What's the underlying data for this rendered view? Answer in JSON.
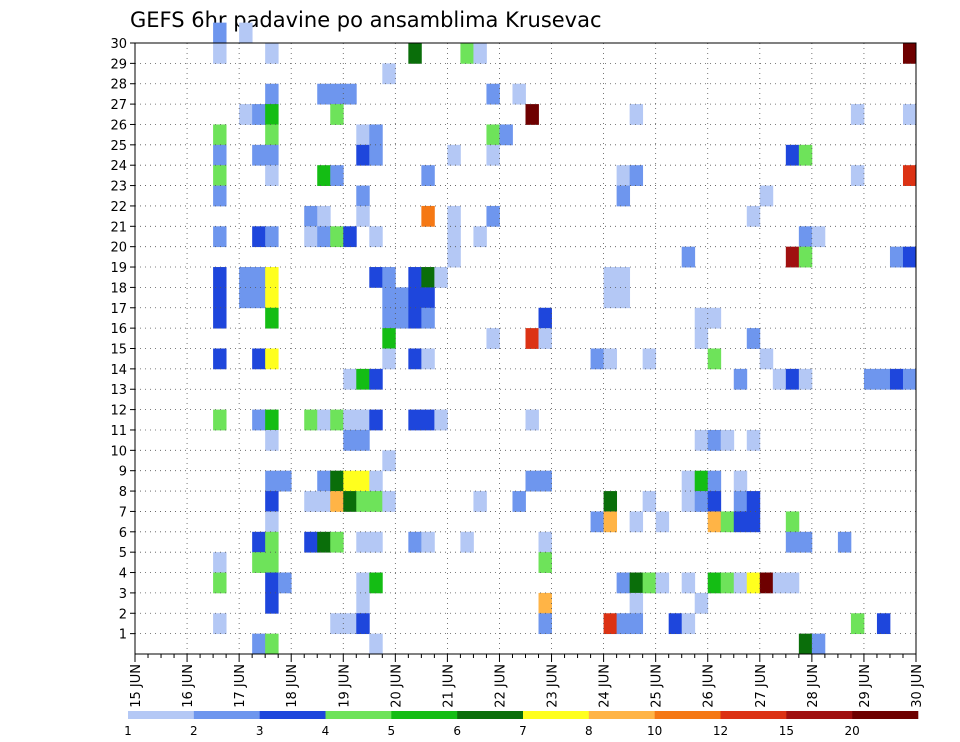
{
  "chart_data": {
    "type": "heatmap",
    "title": "GEFS 6hr padavine po ansamblima Krusevac",
    "xlabel": "",
    "ylabel": "",
    "x_ticks": [
      "15 JUN",
      "16 JUN",
      "17 JUN",
      "18 JUN",
      "19 JUN",
      "20 JUN",
      "21 JUN",
      "22 JUN",
      "23 JUN",
      "24 JUN",
      "25 JUN",
      "26 JUN",
      "27 JUN",
      "28 JUN",
      "29 JUN",
      "30 JUN"
    ],
    "y_ticks": [
      "1",
      "2",
      "3",
      "4",
      "5",
      "6",
      "7",
      "8",
      "9",
      "10",
      "11",
      "12",
      "13",
      "14",
      "15",
      "16",
      "17",
      "18",
      "19",
      "20",
      "21",
      "22",
      "23",
      "24",
      "25",
      "26",
      "27",
      "28",
      "29",
      "30"
    ],
    "xlim": [
      0,
      60
    ],
    "ylim": [
      0,
      30
    ],
    "grid": true,
    "legend": {
      "position": "bottom",
      "labels": [
        "1",
        "2",
        "3",
        "4",
        "5",
        "6",
        "7",
        "8",
        "10",
        "12",
        "15",
        "20"
      ],
      "colors": [
        "#b4c8f5",
        "#6e96ee",
        "#1e46dc",
        "#6ee35a",
        "#14bd14",
        "#0a6e0a",
        "#ffff1e",
        "#ffb446",
        "#f57814",
        "#dc3214",
        "#a01010",
        "#6e0000"
      ]
    },
    "series": [
      {
        "run": 30,
        "cells": [
          {
            "t": 6,
            "c": 2
          },
          {
            "t": 8,
            "c": 1
          }
        ]
      },
      {
        "run": 29,
        "cells": [
          {
            "t": 6,
            "c": 1
          },
          {
            "t": 10,
            "c": 1
          },
          {
            "t": 21,
            "c": 6
          },
          {
            "t": 25,
            "c": 4
          },
          {
            "t": 26,
            "c": 1
          },
          {
            "t": 59,
            "c": 12
          }
        ]
      },
      {
        "run": 28,
        "cells": [
          {
            "t": 19,
            "c": 1
          }
        ]
      },
      {
        "run": 27,
        "cells": [
          {
            "t": 10,
            "c": 2
          },
          {
            "t": 14,
            "c": 2
          },
          {
            "t": 15,
            "c": 2
          },
          {
            "t": 16,
            "c": 2
          },
          {
            "t": 27,
            "c": 2
          },
          {
            "t": 29,
            "c": 1
          }
        ]
      },
      {
        "run": 26,
        "cells": [
          {
            "t": 8,
            "c": 1
          },
          {
            "t": 9,
            "c": 2
          },
          {
            "t": 10,
            "c": 5
          },
          {
            "t": 15,
            "c": 4
          },
          {
            "t": 30,
            "c": 12
          },
          {
            "t": 38,
            "c": 1
          },
          {
            "t": 55,
            "c": 1
          },
          {
            "t": 59,
            "c": 1
          }
        ]
      },
      {
        "run": 25,
        "cells": [
          {
            "t": 6,
            "c": 4
          },
          {
            "t": 10,
            "c": 4
          },
          {
            "t": 17,
            "c": 1
          },
          {
            "t": 18,
            "c": 2
          },
          {
            "t": 27,
            "c": 4
          },
          {
            "t": 28,
            "c": 2
          }
        ]
      },
      {
        "run": 24,
        "cells": [
          {
            "t": 6,
            "c": 2
          },
          {
            "t": 9,
            "c": 2
          },
          {
            "t": 10,
            "c": 2
          },
          {
            "t": 17,
            "c": 3
          },
          {
            "t": 18,
            "c": 2
          },
          {
            "t": 24,
            "c": 1
          },
          {
            "t": 27,
            "c": 1
          },
          {
            "t": 50,
            "c": 3
          },
          {
            "t": 51,
            "c": 4
          }
        ]
      },
      {
        "run": 23,
        "cells": [
          {
            "t": 6,
            "c": 4
          },
          {
            "t": 10,
            "c": 1
          },
          {
            "t": 14,
            "c": 5
          },
          {
            "t": 15,
            "c": 2
          },
          {
            "t": 22,
            "c": 2
          },
          {
            "t": 37,
            "c": 1
          },
          {
            "t": 38,
            "c": 2
          },
          {
            "t": 55,
            "c": 1
          },
          {
            "t": 59,
            "c": 10
          }
        ]
      },
      {
        "run": 22,
        "cells": [
          {
            "t": 6,
            "c": 2
          },
          {
            "t": 17,
            "c": 2
          },
          {
            "t": 37,
            "c": 2
          },
          {
            "t": 48,
            "c": 1
          }
        ]
      },
      {
        "run": 21,
        "cells": [
          {
            "t": 13,
            "c": 2
          },
          {
            "t": 14,
            "c": 1
          },
          {
            "t": 17,
            "c": 1
          },
          {
            "t": 22,
            "c": 9
          },
          {
            "t": 24,
            "c": 1
          },
          {
            "t": 27,
            "c": 2
          },
          {
            "t": 47,
            "c": 1
          }
        ]
      },
      {
        "run": 20,
        "cells": [
          {
            "t": 6,
            "c": 2
          },
          {
            "t": 9,
            "c": 3
          },
          {
            "t": 10,
            "c": 2
          },
          {
            "t": 13,
            "c": 1
          },
          {
            "t": 14,
            "c": 2
          },
          {
            "t": 15,
            "c": 4
          },
          {
            "t": 16,
            "c": 3
          },
          {
            "t": 18,
            "c": 1
          },
          {
            "t": 24,
            "c": 1
          },
          {
            "t": 26,
            "c": 1
          },
          {
            "t": 51,
            "c": 2
          },
          {
            "t": 52,
            "c": 1
          }
        ]
      },
      {
        "run": 19,
        "cells": [
          {
            "t": 24,
            "c": 1
          },
          {
            "t": 42,
            "c": 2
          },
          {
            "t": 50,
            "c": 11
          },
          {
            "t": 51,
            "c": 4
          },
          {
            "t": 58,
            "c": 2
          },
          {
            "t": 59,
            "c": 3
          }
        ]
      },
      {
        "run": 18,
        "cells": [
          {
            "t": 6,
            "c": 3
          },
          {
            "t": 8,
            "c": 2
          },
          {
            "t": 9,
            "c": 2
          },
          {
            "t": 10,
            "c": 7
          },
          {
            "t": 18,
            "c": 3
          },
          {
            "t": 19,
            "c": 2
          },
          {
            "t": 21,
            "c": 3
          },
          {
            "t": 22,
            "c": 6
          },
          {
            "t": 23,
            "c": 1
          },
          {
            "t": 36,
            "c": 1
          },
          {
            "t": 37,
            "c": 1
          }
        ]
      },
      {
        "run": 17,
        "cells": [
          {
            "t": 6,
            "c": 3
          },
          {
            "t": 8,
            "c": 2
          },
          {
            "t": 9,
            "c": 2
          },
          {
            "t": 10,
            "c": 7
          },
          {
            "t": 19,
            "c": 2
          },
          {
            "t": 20,
            "c": 2
          },
          {
            "t": 21,
            "c": 3
          },
          {
            "t": 22,
            "c": 3
          },
          {
            "t": 36,
            "c": 1
          },
          {
            "t": 37,
            "c": 1
          }
        ]
      },
      {
        "run": 16,
        "cells": [
          {
            "t": 6,
            "c": 3
          },
          {
            "t": 10,
            "c": 5
          },
          {
            "t": 19,
            "c": 2
          },
          {
            "t": 20,
            "c": 2
          },
          {
            "t": 21,
            "c": 3
          },
          {
            "t": 22,
            "c": 2
          },
          {
            "t": 31,
            "c": 3
          },
          {
            "t": 43,
            "c": 1
          },
          {
            "t": 44,
            "c": 1
          }
        ]
      },
      {
        "run": 15,
        "cells": [
          {
            "t": 19,
            "c": 5
          },
          {
            "t": 27,
            "c": 1
          },
          {
            "t": 30,
            "c": 10
          },
          {
            "t": 31,
            "c": 1
          },
          {
            "t": 43,
            "c": 1
          },
          {
            "t": 47,
            "c": 2
          }
        ]
      },
      {
        "run": 14,
        "cells": [
          {
            "t": 6,
            "c": 3
          },
          {
            "t": 9,
            "c": 3
          },
          {
            "t": 10,
            "c": 7
          },
          {
            "t": 19,
            "c": 1
          },
          {
            "t": 21,
            "c": 3
          },
          {
            "t": 22,
            "c": 1
          },
          {
            "t": 35,
            "c": 2
          },
          {
            "t": 36,
            "c": 1
          },
          {
            "t": 39,
            "c": 1
          },
          {
            "t": 44,
            "c": 4
          },
          {
            "t": 48,
            "c": 1
          }
        ]
      },
      {
        "run": 13,
        "cells": [
          {
            "t": 16,
            "c": 1
          },
          {
            "t": 17,
            "c": 5
          },
          {
            "t": 18,
            "c": 3
          },
          {
            "t": 46,
            "c": 2
          },
          {
            "t": 49,
            "c": 1
          },
          {
            "t": 50,
            "c": 3
          },
          {
            "t": 51,
            "c": 1
          },
          {
            "t": 56,
            "c": 2
          },
          {
            "t": 57,
            "c": 2
          },
          {
            "t": 58,
            "c": 3
          },
          {
            "t": 59,
            "c": 2
          }
        ]
      },
      {
        "run": 11,
        "cells": [
          {
            "t": 6,
            "c": 4
          },
          {
            "t": 9,
            "c": 2
          },
          {
            "t": 10,
            "c": 5
          },
          {
            "t": 13,
            "c": 4
          },
          {
            "t": 14,
            "c": 1
          },
          {
            "t": 15,
            "c": 4
          },
          {
            "t": 16,
            "c": 1
          },
          {
            "t": 17,
            "c": 1
          },
          {
            "t": 18,
            "c": 3
          },
          {
            "t": 21,
            "c": 3
          },
          {
            "t": 22,
            "c": 3
          },
          {
            "t": 23,
            "c": 1
          },
          {
            "t": 30,
            "c": 1
          }
        ]
      },
      {
        "run": 10,
        "cells": [
          {
            "t": 10,
            "c": 1
          },
          {
            "t": 16,
            "c": 2
          },
          {
            "t": 17,
            "c": 2
          },
          {
            "t": 43,
            "c": 1
          },
          {
            "t": 44,
            "c": 2
          },
          {
            "t": 45,
            "c": 1
          },
          {
            "t": 47,
            "c": 1
          }
        ]
      },
      {
        "run": 9,
        "cells": [
          {
            "t": 19,
            "c": 1
          }
        ]
      },
      {
        "run": 8,
        "cells": [
          {
            "t": 10,
            "c": 2
          },
          {
            "t": 11,
            "c": 2
          },
          {
            "t": 14,
            "c": 2
          },
          {
            "t": 15,
            "c": 6
          },
          {
            "t": 16,
            "c": 7
          },
          {
            "t": 17,
            "c": 7
          },
          {
            "t": 18,
            "c": 1
          },
          {
            "t": 30,
            "c": 2
          },
          {
            "t": 31,
            "c": 2
          },
          {
            "t": 42,
            "c": 1
          },
          {
            "t": 43,
            "c": 5
          },
          {
            "t": 44,
            "c": 2
          },
          {
            "t": 46,
            "c": 1
          }
        ]
      },
      {
        "run": 7,
        "cells": [
          {
            "t": 10,
            "c": 3
          },
          {
            "t": 13,
            "c": 1
          },
          {
            "t": 14,
            "c": 1
          },
          {
            "t": 15,
            "c": 8
          },
          {
            "t": 16,
            "c": 6
          },
          {
            "t": 17,
            "c": 4
          },
          {
            "t": 18,
            "c": 4
          },
          {
            "t": 19,
            "c": 1
          },
          {
            "t": 26,
            "c": 1
          },
          {
            "t": 29,
            "c": 2
          },
          {
            "t": 36,
            "c": 6
          },
          {
            "t": 39,
            "c": 1
          },
          {
            "t": 42,
            "c": 1
          },
          {
            "t": 43,
            "c": 2
          },
          {
            "t": 44,
            "c": 3
          },
          {
            "t": 46,
            "c": 2
          },
          {
            "t": 47,
            "c": 3
          }
        ]
      },
      {
        "run": 6,
        "cells": [
          {
            "t": 10,
            "c": 1
          },
          {
            "t": 35,
            "c": 2
          },
          {
            "t": 36,
            "c": 8
          },
          {
            "t": 38,
            "c": 1
          },
          {
            "t": 40,
            "c": 1
          },
          {
            "t": 44,
            "c": 8
          },
          {
            "t": 45,
            "c": 4
          },
          {
            "t": 46,
            "c": 3
          },
          {
            "t": 47,
            "c": 3
          },
          {
            "t": 50,
            "c": 4
          }
        ]
      },
      {
        "run": 5,
        "cells": [
          {
            "t": 9,
            "c": 3
          },
          {
            "t": 10,
            "c": 4
          },
          {
            "t": 13,
            "c": 3
          },
          {
            "t": 14,
            "c": 6
          },
          {
            "t": 15,
            "c": 4
          },
          {
            "t": 17,
            "c": 1
          },
          {
            "t": 18,
            "c": 1
          },
          {
            "t": 21,
            "c": 2
          },
          {
            "t": 22,
            "c": 1
          },
          {
            "t": 25,
            "c": 1
          },
          {
            "t": 31,
            "c": 1
          },
          {
            "t": 50,
            "c": 2
          },
          {
            "t": 51,
            "c": 2
          },
          {
            "t": 54,
            "c": 2
          }
        ]
      },
      {
        "run": 4,
        "cells": [
          {
            "t": 6,
            "c": 1
          },
          {
            "t": 9,
            "c": 4
          },
          {
            "t": 10,
            "c": 4
          },
          {
            "t": 31,
            "c": 4
          }
        ]
      },
      {
        "run": 3,
        "cells": [
          {
            "t": 6,
            "c": 4
          },
          {
            "t": 10,
            "c": 3
          },
          {
            "t": 11,
            "c": 2
          },
          {
            "t": 17,
            "c": 1
          },
          {
            "t": 18,
            "c": 5
          },
          {
            "t": 37,
            "c": 2
          },
          {
            "t": 38,
            "c": 6
          },
          {
            "t": 39,
            "c": 4
          },
          {
            "t": 40,
            "c": 1
          },
          {
            "t": 42,
            "c": 1
          },
          {
            "t": 44,
            "c": 5
          },
          {
            "t": 45,
            "c": 4
          },
          {
            "t": 46,
            "c": 1
          },
          {
            "t": 47,
            "c": 7
          },
          {
            "t": 48,
            "c": 12
          },
          {
            "t": 49,
            "c": 1
          },
          {
            "t": 50,
            "c": 1
          }
        ]
      },
      {
        "run": 2,
        "cells": [
          {
            "t": 10,
            "c": 3
          },
          {
            "t": 17,
            "c": 1
          },
          {
            "t": 31,
            "c": 8
          },
          {
            "t": 38,
            "c": 1
          },
          {
            "t": 43,
            "c": 1
          }
        ]
      },
      {
        "run": 1,
        "cells": [
          {
            "t": 6,
            "c": 1
          },
          {
            "t": 15,
            "c": 1
          },
          {
            "t": 16,
            "c": 1
          },
          {
            "t": 17,
            "c": 3
          },
          {
            "t": 31,
            "c": 2
          },
          {
            "t": 36,
            "c": 10
          },
          {
            "t": 37,
            "c": 2
          },
          {
            "t": 38,
            "c": 2
          },
          {
            "t": 41,
            "c": 3
          },
          {
            "t": 42,
            "c": 1
          },
          {
            "t": 55,
            "c": 4
          },
          {
            "t": 57,
            "c": 3
          }
        ]
      },
      {
        "run": 0,
        "cells": [
          {
            "t": 9,
            "c": 2
          },
          {
            "t": 10,
            "c": 4
          },
          {
            "t": 18,
            "c": 1
          },
          {
            "t": 51,
            "c": 6
          },
          {
            "t": 52,
            "c": 2
          }
        ]
      }
    ]
  }
}
